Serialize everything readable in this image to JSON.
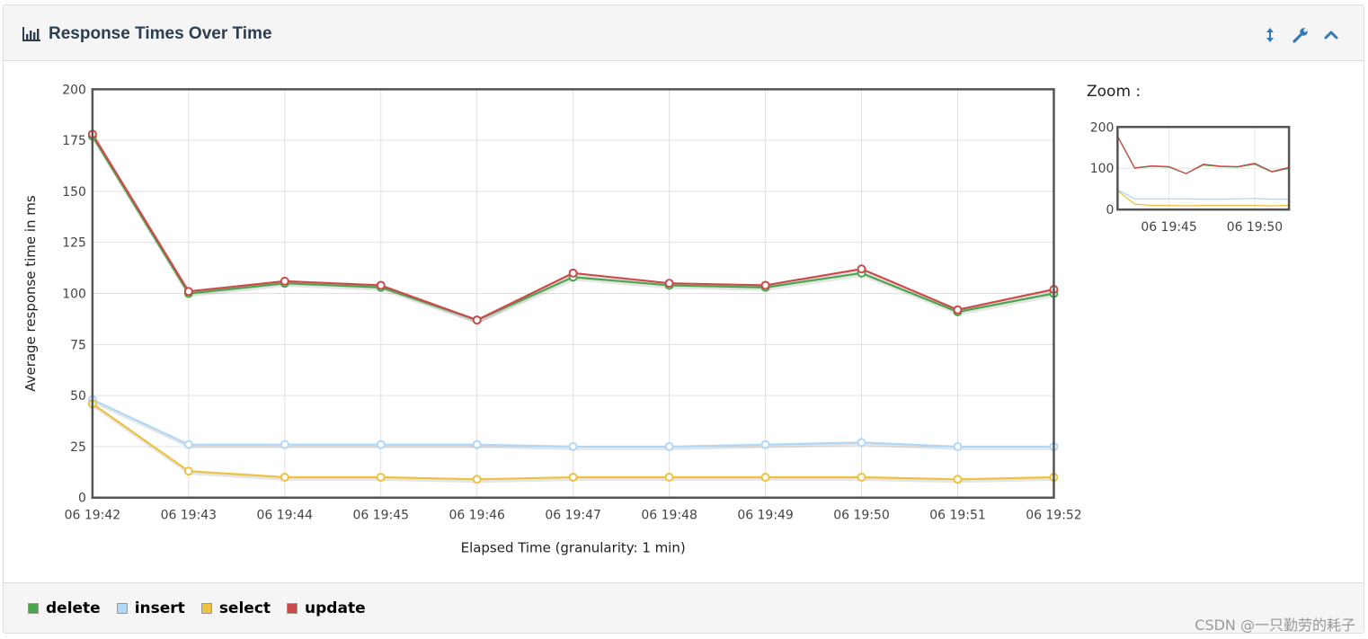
{
  "panel": {
    "title": "Response Times Over Time",
    "zoom_label": "Zoom :",
    "watermark": "CSDN @一只勤劳的耗子"
  },
  "icons": {
    "title": "bar-chart-icon",
    "resize": "vertical-resize-icon",
    "wrench": "wrench-icon",
    "collapse": "chevron-up-icon"
  },
  "colors": {
    "delete": "#4ca64c",
    "insert": "#afd8f8",
    "select": "#edc240",
    "update": "#cb4b4b"
  },
  "chart_data": {
    "type": "line",
    "title": "",
    "xlabel": "Elapsed Time (granularity: 1 min)",
    "ylabel": "Average response time in ms",
    "ylim": [
      0,
      200
    ],
    "y_ticks": [
      0,
      25,
      50,
      75,
      100,
      125,
      150,
      175,
      200
    ],
    "categories": [
      "06 19:42",
      "06 19:43",
      "06 19:44",
      "06 19:45",
      "06 19:46",
      "06 19:47",
      "06 19:48",
      "06 19:49",
      "06 19:50",
      "06 19:51",
      "06 19:52"
    ],
    "grid": true,
    "legend": "bottom",
    "series": [
      {
        "name": "delete",
        "values": [
          177,
          100,
          105,
          103,
          87,
          108,
          104,
          103,
          110,
          91,
          100
        ]
      },
      {
        "name": "insert",
        "values": [
          48,
          26,
          26,
          26,
          26,
          25,
          25,
          26,
          27,
          25,
          25
        ]
      },
      {
        "name": "select",
        "values": [
          46,
          13,
          10,
          10,
          9,
          10,
          10,
          10,
          10,
          9,
          10
        ]
      },
      {
        "name": "update",
        "values": [
          178,
          101,
          106,
          104,
          87,
          110,
          105,
          104,
          112,
          92,
          102
        ]
      }
    ],
    "zoom": {
      "y_ticks": [
        0,
        100,
        200
      ],
      "x_ticks": [
        "06 19:45",
        "06 19:50"
      ]
    }
  }
}
